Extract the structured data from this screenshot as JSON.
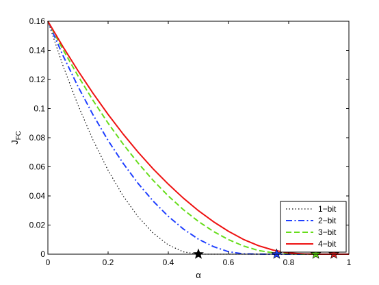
{
  "chart_data": {
    "type": "line",
    "title": "",
    "xlabel": "α",
    "ylabel_main": "J",
    "ylabel_sub": "FC",
    "xlim": [
      0,
      1
    ],
    "ylim": [
      0,
      0.16
    ],
    "x_ticks": [
      0,
      0.2,
      0.4,
      0.6,
      0.8,
      1
    ],
    "x_tick_labels": [
      "0",
      "0.2",
      "0.4",
      "0.6",
      "0.8",
      "1"
    ],
    "y_ticks": [
      0,
      0.02,
      0.04,
      0.06,
      0.08,
      0.1,
      0.12,
      0.14,
      0.16
    ],
    "y_tick_labels": [
      "0",
      "0.02",
      "0.04",
      "0.06",
      "0.08",
      "0.1",
      "0.12",
      "0.14",
      "0.16"
    ],
    "grid": false,
    "legend_position": "bottom-right",
    "series": [
      {
        "name": "1−bit",
        "color": "#000000",
        "style": "dotted",
        "x": [
          0,
          0.05,
          0.1,
          0.15,
          0.2,
          0.25,
          0.3,
          0.35,
          0.4,
          0.45,
          0.5,
          0.55,
          0.6,
          0.7,
          0.8,
          0.9,
          1.0
        ],
        "y": [
          0.16,
          0.1296,
          0.1024,
          0.0784,
          0.0576,
          0.04,
          0.0256,
          0.0144,
          0.0064,
          0.0016,
          0,
          0,
          0,
          0,
          0,
          0,
          0
        ],
        "marker_x": 0.5,
        "marker_color": "#000000"
      },
      {
        "name": "2−bit",
        "color": "#1f3fff",
        "style": "dashdot",
        "x": [
          0,
          0.05,
          0.1,
          0.15,
          0.2,
          0.25,
          0.3,
          0.35,
          0.4,
          0.45,
          0.5,
          0.55,
          0.6,
          0.65,
          0.7,
          0.75,
          0.76,
          0.8,
          0.9,
          1.0
        ],
        "y": [
          0.16,
          0.1365,
          0.1152,
          0.0957,
          0.0781,
          0.0624,
          0.0485,
          0.0364,
          0.026,
          0.0173,
          0.0103,
          0.0052,
          0.0017,
          0.0002,
          5e-05,
          0,
          0,
          0,
          0,
          0
        ],
        "marker_x": 0.76,
        "marker_color": "#1f3fff"
      },
      {
        "name": "3−bit",
        "color": "#66dd1a",
        "style": "dashed",
        "x": [
          0,
          0.05,
          0.1,
          0.15,
          0.2,
          0.25,
          0.3,
          0.35,
          0.4,
          0.45,
          0.5,
          0.55,
          0.6,
          0.65,
          0.7,
          0.75,
          0.8,
          0.85,
          0.89,
          0.95,
          1.0
        ],
        "y": [
          0.16,
          0.1406,
          0.1225,
          0.1056,
          0.09,
          0.0756,
          0.0625,
          0.0506,
          0.04,
          0.0306,
          0.0225,
          0.0156,
          0.01,
          0.0056,
          0.0025,
          0.0009,
          0.0002,
          5e-05,
          0,
          0,
          0
        ],
        "marker_x": 0.89,
        "marker_color": "#66dd1a"
      },
      {
        "name": "4−bit",
        "color": "#ee1111",
        "style": "solid",
        "x": [
          0,
          0.05,
          0.1,
          0.15,
          0.2,
          0.25,
          0.3,
          0.35,
          0.4,
          0.45,
          0.5,
          0.55,
          0.6,
          0.65,
          0.7,
          0.75,
          0.8,
          0.85,
          0.9,
          0.95,
          1.0
        ],
        "y": [
          0.16,
          0.1425,
          0.126,
          0.1105,
          0.096,
          0.0825,
          0.07,
          0.0585,
          0.0481,
          0.0385,
          0.0299,
          0.0223,
          0.0157,
          0.0101,
          0.0058,
          0.0027,
          0.0009,
          0.0002,
          3e-05,
          0,
          0
        ],
        "marker_x": 0.95,
        "marker_color": "#dd2222"
      }
    ]
  }
}
